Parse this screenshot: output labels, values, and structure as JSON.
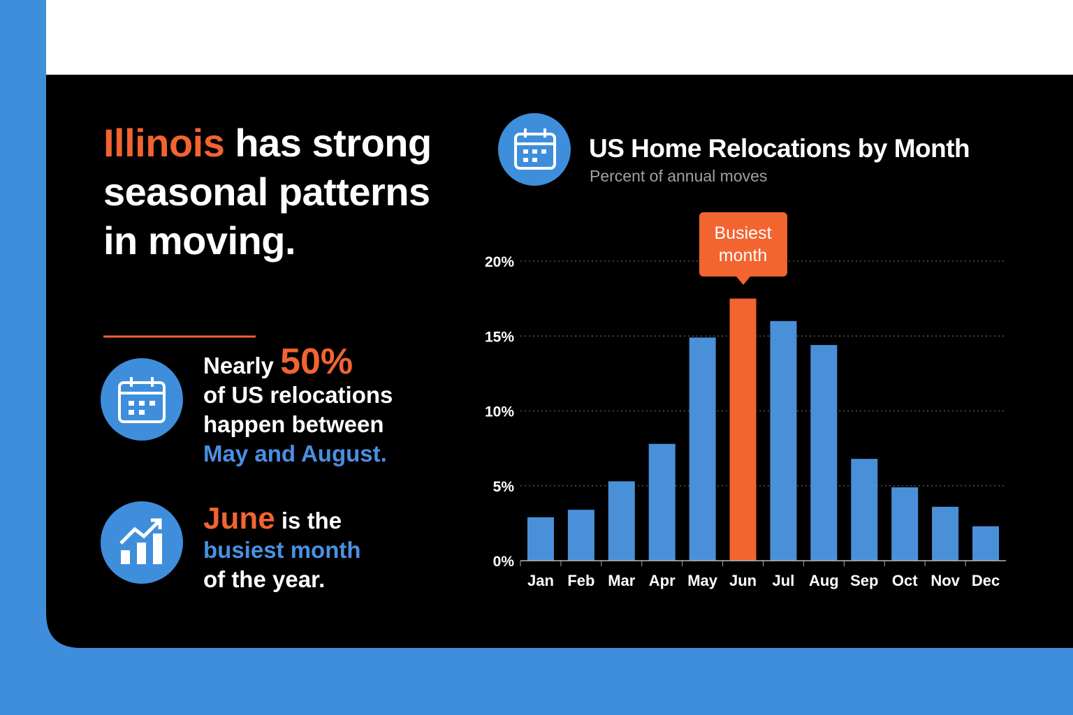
{
  "headline": {
    "highlight": "Illinois",
    "text": "has strong seasonal patterns in moving."
  },
  "stats": [
    {
      "lead": "Nearly",
      "figure": "50%",
      "text": "of US relocations happen between",
      "highlight": "May and August."
    },
    {
      "lead": "June",
      "text": "is the",
      "highlight": "busiest month",
      "tail": "of the year."
    }
  ],
  "chart_data": {
    "type": "bar",
    "title": "US Home Relocations by Month",
    "subtitle": "Percent of annual moves",
    "categories": [
      "Jan",
      "Feb",
      "Mar",
      "Apr",
      "May",
      "Jun",
      "Jul",
      "Aug",
      "Sep",
      "Oct",
      "Nov",
      "Dec"
    ],
    "values": [
      2.9,
      3.4,
      5.3,
      7.8,
      14.9,
      17.5,
      16.0,
      14.4,
      6.8,
      4.9,
      3.6,
      2.3
    ],
    "bar_colors": [
      "#4a90d9",
      "#4a90d9",
      "#4a90d9",
      "#4a90d9",
      "#4a90d9",
      "#f26430",
      "#4a90d9",
      "#4a90d9",
      "#4a90d9",
      "#4a90d9",
      "#4a90d9",
      "#4a90d9"
    ],
    "annotation": "Busiest month",
    "ylim": [
      0,
      20
    ],
    "yticks": [
      {
        "value": 0,
        "label": "0%"
      },
      {
        "value": 5,
        "label": "5%"
      },
      {
        "value": 10,
        "label": "10%"
      },
      {
        "value": 15,
        "label": "15%"
      },
      {
        "value": 20,
        "label": "20%"
      }
    ],
    "grid": true
  }
}
